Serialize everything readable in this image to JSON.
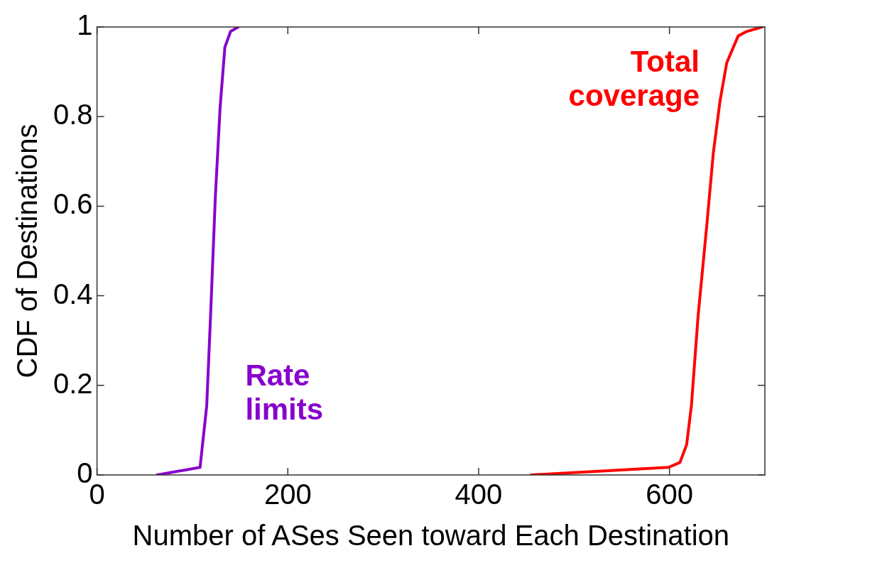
{
  "chart_data": {
    "type": "line",
    "xlabel": "Number of ASes Seen toward Each Destination",
    "ylabel": "CDF of Destinations",
    "xlim": [
      0,
      700
    ],
    "ylim": [
      0,
      1
    ],
    "xticks": [
      0,
      200,
      400,
      600
    ],
    "yticks": [
      0,
      0.2,
      0.4,
      0.6,
      0.8,
      1
    ],
    "marker": "none",
    "line_style": "solid",
    "series": [
      {
        "name": "Rate limits",
        "color": "#8800cc",
        "x": [
          63,
          108,
          115,
          119,
          124,
          129,
          134,
          140,
          148
        ],
        "values": [
          0,
          0.017,
          0.155,
          0.355,
          0.62,
          0.82,
          0.955,
          0.99,
          1
        ]
      },
      {
        "name": "Total coverage",
        "color": "#ff0000",
        "x": [
          455,
          599,
          611,
          618,
          623,
          630,
          639,
          646,
          653,
          660,
          672,
          681,
          697
        ],
        "values": [
          0,
          0.017,
          0.028,
          0.068,
          0.155,
          0.355,
          0.555,
          0.72,
          0.835,
          0.92,
          0.98,
          0.99,
          1
        ]
      }
    ]
  }
}
